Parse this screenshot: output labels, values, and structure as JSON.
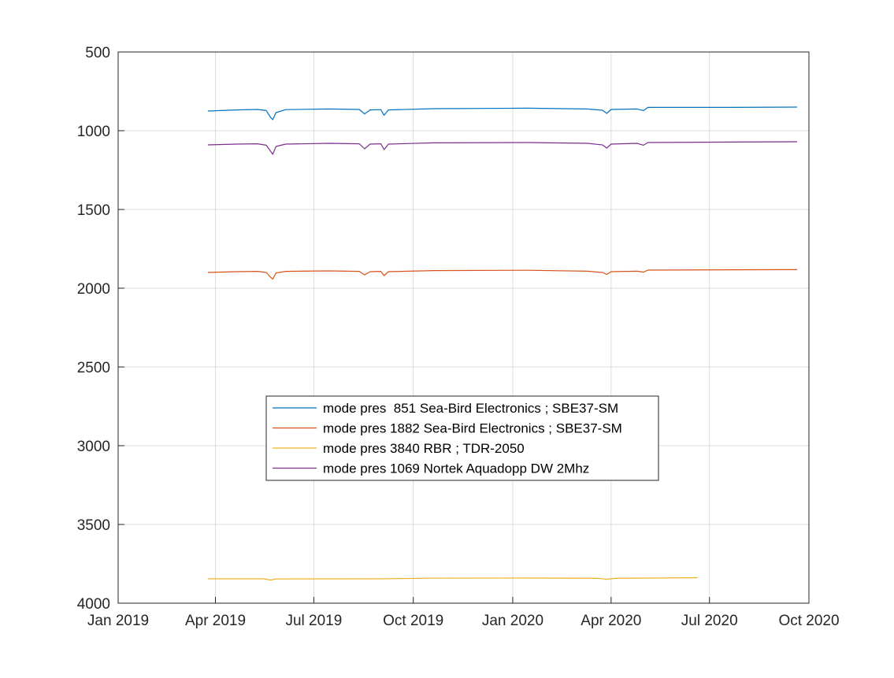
{
  "chart_data": {
    "type": "line",
    "title": "",
    "xlabel": "",
    "ylabel": "",
    "y_reversed": true,
    "ylim": [
      500,
      4000
    ],
    "yticks": [
      500,
      1000,
      1500,
      2000,
      2500,
      3000,
      3500,
      4000
    ],
    "xlim": [
      "2019-01-01",
      "2020-10-01"
    ],
    "xticks": [
      "2019-01-01",
      "2019-04-01",
      "2019-07-01",
      "2019-10-01",
      "2020-01-01",
      "2020-04-01",
      "2020-07-01",
      "2020-10-01"
    ],
    "xtick_labels": [
      "Jan 2019",
      "Apr 2019",
      "Jul 2019",
      "Oct 2019",
      "Jan 2020",
      "Apr 2020",
      "Jul 2020",
      "Oct 2020"
    ],
    "grid": true,
    "legend_position": "center",
    "series": [
      {
        "name": "mode pres  851 Sea-Bird Electronics ; SBE37-SM",
        "color": "#0072BD",
        "points": [
          [
            "2019-03-25",
            875
          ],
          [
            "2019-04-20",
            868
          ],
          [
            "2019-05-10",
            865
          ],
          [
            "2019-05-18",
            872
          ],
          [
            "2019-05-22",
            915
          ],
          [
            "2019-05-24",
            930
          ],
          [
            "2019-05-27",
            885
          ],
          [
            "2019-06-05",
            866
          ],
          [
            "2019-07-15",
            862
          ],
          [
            "2019-08-12",
            865
          ],
          [
            "2019-08-17",
            893
          ],
          [
            "2019-08-22",
            868
          ],
          [
            "2019-09-01",
            866
          ],
          [
            "2019-09-04",
            902
          ],
          [
            "2019-09-08",
            868
          ],
          [
            "2019-10-20",
            860
          ],
          [
            "2020-01-15",
            857
          ],
          [
            "2020-03-10",
            862
          ],
          [
            "2020-03-24",
            870
          ],
          [
            "2020-03-28",
            890
          ],
          [
            "2020-04-01",
            865
          ],
          [
            "2020-04-25",
            862
          ],
          [
            "2020-05-01",
            872
          ],
          [
            "2020-05-05",
            852
          ],
          [
            "2020-07-20",
            852
          ],
          [
            "2020-09-20",
            850
          ]
        ]
      },
      {
        "name": "mode pres 1882 Sea-Bird Electronics ; SBE37-SM",
        "color": "#D95319",
        "points": [
          [
            "2019-03-25",
            1900
          ],
          [
            "2019-04-20",
            1895
          ],
          [
            "2019-05-10",
            1893
          ],
          [
            "2019-05-18",
            1900
          ],
          [
            "2019-05-22",
            1930
          ],
          [
            "2019-05-24",
            1942
          ],
          [
            "2019-05-27",
            1903
          ],
          [
            "2019-06-05",
            1893
          ],
          [
            "2019-07-15",
            1890
          ],
          [
            "2019-08-12",
            1893
          ],
          [
            "2019-08-17",
            1915
          ],
          [
            "2019-08-22",
            1895
          ],
          [
            "2019-09-01",
            1893
          ],
          [
            "2019-09-04",
            1920
          ],
          [
            "2019-09-08",
            1895
          ],
          [
            "2019-10-20",
            1888
          ],
          [
            "2020-01-15",
            1886
          ],
          [
            "2020-03-10",
            1892
          ],
          [
            "2020-03-24",
            1900
          ],
          [
            "2020-03-28",
            1912
          ],
          [
            "2020-04-01",
            1895
          ],
          [
            "2020-04-25",
            1892
          ],
          [
            "2020-05-01",
            1898
          ],
          [
            "2020-05-05",
            1885
          ],
          [
            "2020-07-20",
            1883
          ],
          [
            "2020-09-20",
            1882
          ]
        ]
      },
      {
        "name": "mode pres 3840 RBR ; TDR-2050",
        "color": "#EDB120",
        "points": [
          [
            "2019-03-25",
            3845
          ],
          [
            "2019-05-15",
            3845
          ],
          [
            "2019-05-22",
            3853
          ],
          [
            "2019-05-27",
            3846
          ],
          [
            "2019-09-01",
            3845
          ],
          [
            "2019-10-20",
            3841
          ],
          [
            "2020-01-15",
            3840
          ],
          [
            "2020-03-20",
            3842
          ],
          [
            "2020-03-28",
            3848
          ],
          [
            "2020-04-05",
            3842
          ],
          [
            "2020-06-20",
            3838
          ]
        ]
      },
      {
        "name": "mode pres 1069 Nortek Aquadopp DW 2Mhz",
        "color": "#7E2F8E",
        "points": [
          [
            "2019-03-25",
            1090
          ],
          [
            "2019-04-20",
            1085
          ],
          [
            "2019-05-10",
            1083
          ],
          [
            "2019-05-18",
            1092
          ],
          [
            "2019-05-22",
            1130
          ],
          [
            "2019-05-24",
            1150
          ],
          [
            "2019-05-27",
            1100
          ],
          [
            "2019-06-05",
            1085
          ],
          [
            "2019-07-15",
            1080
          ],
          [
            "2019-08-12",
            1083
          ],
          [
            "2019-08-17",
            1115
          ],
          [
            "2019-08-22",
            1085
          ],
          [
            "2019-09-01",
            1083
          ],
          [
            "2019-09-04",
            1120
          ],
          [
            "2019-09-08",
            1085
          ],
          [
            "2019-10-20",
            1077
          ],
          [
            "2020-01-15",
            1075
          ],
          [
            "2020-03-10",
            1080
          ],
          [
            "2020-03-24",
            1090
          ],
          [
            "2020-03-28",
            1110
          ],
          [
            "2020-04-01",
            1085
          ],
          [
            "2020-04-25",
            1080
          ],
          [
            "2020-05-01",
            1092
          ],
          [
            "2020-05-05",
            1075
          ],
          [
            "2020-07-20",
            1072
          ],
          [
            "2020-09-20",
            1070
          ]
        ]
      }
    ]
  }
}
